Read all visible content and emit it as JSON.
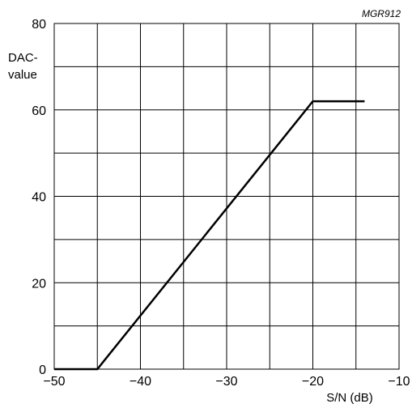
{
  "chart_data": {
    "type": "line",
    "reference": "MGR912",
    "xlabel": "S/N (dB)",
    "ylabel_line1": "DAC-",
    "ylabel_line2": "value",
    "xlim": [
      -50,
      -10
    ],
    "ylim": [
      0,
      80
    ],
    "grid": true,
    "x_ticks": [
      -50,
      -45,
      -40,
      -35,
      -30,
      -25,
      -20,
      -15,
      -10
    ],
    "y_ticks": [
      0,
      10,
      20,
      30,
      40,
      50,
      60,
      70,
      80
    ],
    "x_tick_labels": [
      {
        "value": -50,
        "text": "−50"
      },
      {
        "value": -40,
        "text": "−40"
      },
      {
        "value": -30,
        "text": "−30"
      },
      {
        "value": -20,
        "text": "−20"
      },
      {
        "value": -10,
        "text": "−10"
      }
    ],
    "y_tick_labels": [
      {
        "value": 0,
        "text": "0"
      },
      {
        "value": 20,
        "text": "20"
      },
      {
        "value": 40,
        "text": "40"
      },
      {
        "value": 60,
        "text": "60"
      },
      {
        "value": 80,
        "text": "80"
      }
    ],
    "series": [
      {
        "color": "#000000",
        "x": [
          -50,
          -45,
          -20,
          -14
        ],
        "y": [
          0,
          0,
          62,
          62
        ]
      }
    ]
  }
}
